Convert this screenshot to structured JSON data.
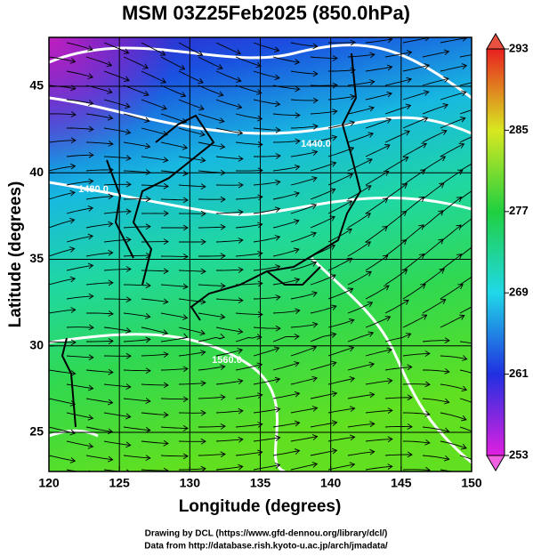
{
  "chart_data": {
    "type": "map",
    "title": "MSM 03Z25Feb2025 (850.0hPa)",
    "x_label": "Longitude (degrees)",
    "y_label": "Latitude  (degrees)",
    "xlim": [
      120,
      150
    ],
    "xticks": [
      120,
      125,
      130,
      135,
      140,
      145,
      150
    ],
    "ylim": [
      22.74,
      47.83
    ],
    "yticks": [
      25,
      30,
      35,
      40,
      45
    ],
    "colorbar": {
      "lim": [
        253,
        293
      ],
      "ticks": [
        253,
        261,
        269,
        277,
        285,
        293
      ]
    },
    "contour_labels": [
      "1440.0",
      "1480.0",
      "1560.0"
    ],
    "credits": [
      "Drawing by DCL (https://www.gfd-dennou.org/library/dcl/)",
      "Data from http://database.rish.kyoto-u.ac.jp/arch/jmadata/"
    ]
  }
}
